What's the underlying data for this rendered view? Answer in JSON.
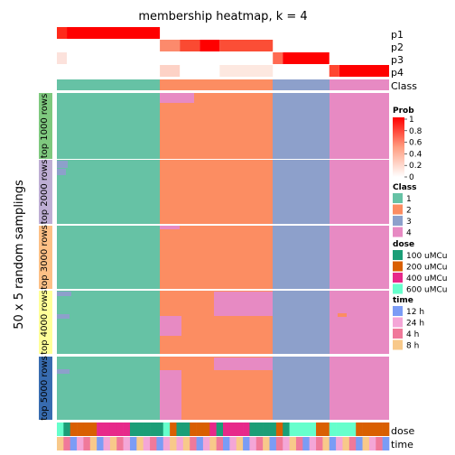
{
  "chart_data": {
    "type": "heatmap",
    "title": "membership heatmap, k = 4",
    "ylabel": "50 x 5 random samplings",
    "row_groups": [
      {
        "label": "top 1000 rows",
        "color": "#7FC97F"
      },
      {
        "label": "top 2000 rows",
        "color": "#BEAED4"
      },
      {
        "label": "top 3000 rows",
        "color": "#FDC086"
      },
      {
        "label": "top 4000 rows",
        "color": "#FFFF99"
      },
      {
        "label": "top 5000 rows",
        "color": "#386CB0"
      }
    ],
    "top_annotations": {
      "prob_rows": [
        "p1",
        "p2",
        "p3",
        "p4"
      ],
      "class_row": "Class"
    },
    "bottom_annotations": [
      "dose",
      "time"
    ],
    "class_columns": [
      {
        "class": "1",
        "color": "#66C2A5",
        "fraction": 0.31
      },
      {
        "class": "2",
        "color": "#FC8D62",
        "fraction": 0.34
      },
      {
        "class": "3",
        "color": "#8DA0CB",
        "fraction": 0.17
      },
      {
        "class": "4",
        "color": "#E78AC3",
        "fraction": 0.18
      }
    ],
    "legends": {
      "prob": {
        "title": "Prob",
        "ticks": [
          "1",
          "0.8",
          "0.6",
          "0.4",
          "0.2",
          "0"
        ],
        "range": [
          0,
          1
        ],
        "low_color": "#FFFFFF",
        "high_color": "#FF0000"
      },
      "class": {
        "title": "Class",
        "entries": [
          {
            "label": "1",
            "color": "#66C2A5"
          },
          {
            "label": "2",
            "color": "#FC8D62"
          },
          {
            "label": "3",
            "color": "#8DA0CB"
          },
          {
            "label": "4",
            "color": "#E78AC3"
          }
        ]
      },
      "dose": {
        "title": "dose",
        "entries": [
          {
            "label": "100 uMCu",
            "color": "#1B9E77"
          },
          {
            "label": "200 uMCu",
            "color": "#D95F02"
          },
          {
            "label": "400 uMCu",
            "color": "#E7298A"
          },
          {
            "label": "600 uMCu",
            "color": "#66FFCC"
          }
        ]
      },
      "time": {
        "title": "time",
        "entries": [
          {
            "label": "12 h",
            "color": "#7B9CF5"
          },
          {
            "label": "24 h",
            "color": "#F4A6D7"
          },
          {
            "label": "4 h",
            "color": "#F0799A"
          },
          {
            "label": "8 h",
            "color": "#F8C98A"
          }
        ]
      }
    }
  }
}
